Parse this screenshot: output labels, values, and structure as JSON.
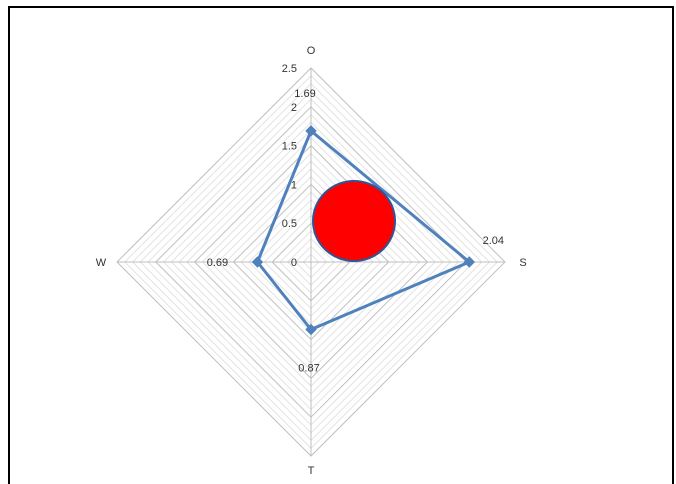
{
  "chart_data": {
    "type": "radar",
    "categories": [
      "O",
      "S",
      "T",
      "W"
    ],
    "values": [
      1.69,
      2.04,
      0.87,
      0.69
    ],
    "data_labels": [
      "1.69",
      "2.04",
      "0.87",
      "0.69"
    ],
    "r_ticks": [
      "0",
      "0.5",
      "1",
      "1.5",
      "2",
      "2.5"
    ],
    "rlim": [
      0,
      2.5
    ],
    "grid": true,
    "series_color": "#4f81bd",
    "circle_marker": {
      "fill": "#ff0000",
      "stroke": "#2f5597"
    }
  }
}
